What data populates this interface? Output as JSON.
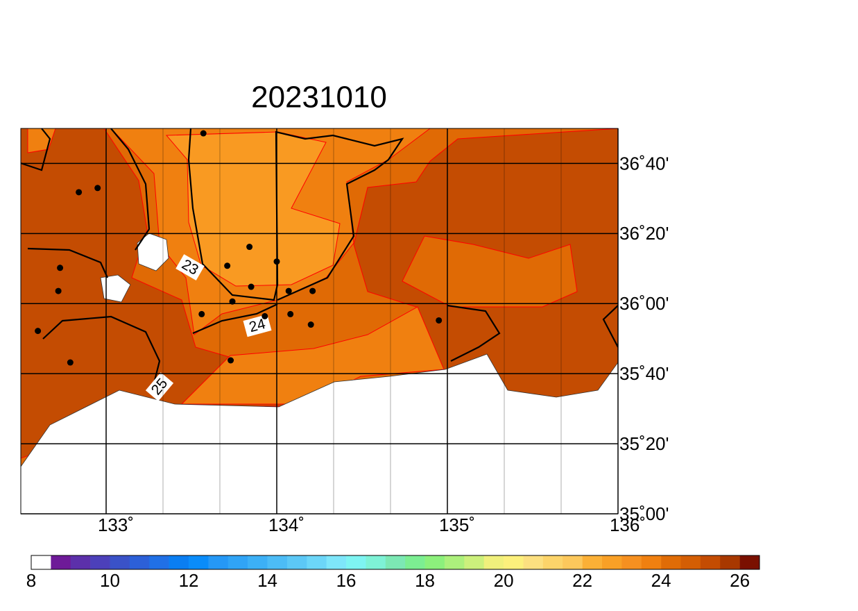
{
  "chart_data": {
    "type": "map",
    "title": "20231010",
    "xlim": [
      132.5,
      136
    ],
    "ylim": [
      35,
      36.8333
    ],
    "xticks": [
      {
        "value": 133,
        "label": "133˚"
      },
      {
        "value": 134,
        "label": "134˚"
      },
      {
        "value": 135,
        "label": "135˚"
      },
      {
        "value": 136,
        "label": "136˚"
      }
    ],
    "yticks": [
      {
        "value": 35,
        "label": "35˚00'"
      },
      {
        "value": 35.3333,
        "label": "35˚20'"
      },
      {
        "value": 35.6667,
        "label": "35˚40'"
      },
      {
        "value": 36,
        "label": "36˚00'"
      },
      {
        "value": 36.3333,
        "label": "36˚20'"
      },
      {
        "value": 36.6667,
        "label": "36˚40'"
      }
    ],
    "contour_labels": [
      "23",
      "24",
      "25"
    ],
    "stations": {
      "lon": [
        133.57,
        132.84,
        132.95,
        133.84,
        133.71,
        134.0,
        132.73,
        132.72,
        133.85,
        134.07,
        134.21,
        133.74,
        132.6,
        133.56,
        133.93,
        134.08,
        134.2,
        134.95,
        132.79,
        133.73
      ],
      "lat": [
        36.81,
        36.53,
        36.55,
        36.27,
        36.18,
        36.2,
        36.17,
        36.06,
        36.08,
        36.06,
        36.06,
        36.01,
        35.87,
        35.95,
        35.94,
        35.95,
        35.9,
        35.92,
        35.72,
        35.73
      ]
    },
    "colorbar_lim": [
      8,
      26.5
    ],
    "colorbar_ticks": [
      8,
      10,
      12,
      14,
      16,
      18,
      20,
      22,
      24,
      26
    ],
    "colorbar_colors": [
      "#ffffff",
      "#6e1a98",
      "#5c30aa",
      "#4c40ba",
      "#3a52c8",
      "#2c60d8",
      "#2070e6",
      "#0a7ef2",
      "#0a8cfa",
      "#2598f6",
      "#30a4f6",
      "#3cb0f6",
      "#4cbcf6",
      "#5cc8f6",
      "#6cd6f8",
      "#7ee6fa",
      "#7ef4f2",
      "#7ef2d6",
      "#7ce8b4",
      "#7cee92",
      "#8cf07c",
      "#acf07c",
      "#ccf07c",
      "#f0f07c",
      "#fcf07c",
      "#fce080",
      "#fcd46a",
      "#fcc85c",
      "#fbb036",
      "#f9a026",
      "#f69020",
      "#f08010",
      "#e06c06",
      "#d45e04",
      "#c44c02",
      "#a83800",
      "#7a1000"
    ]
  }
}
